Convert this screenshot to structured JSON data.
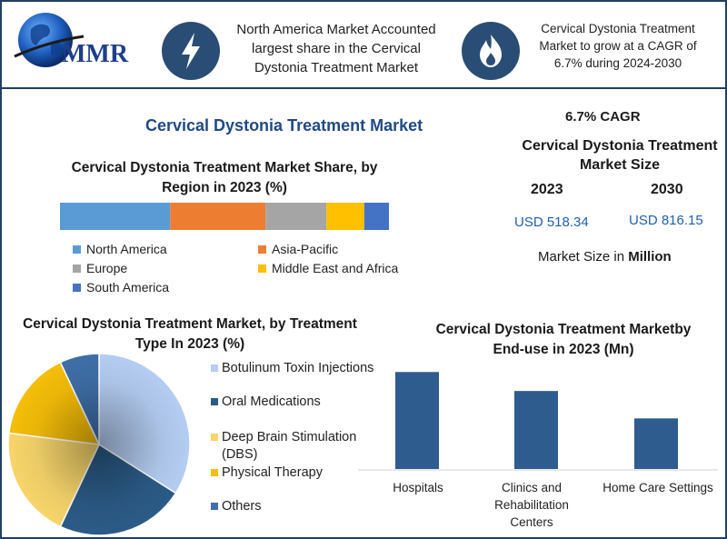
{
  "header": {
    "logo_text": "MMR",
    "blurb_left": "North America Market Accounted largest share in the Cervical Dystonia Treatment Market",
    "blurb_right": "Cervical Dystonia Treatment Market to grow at a CAGR of 6.7% during 2024-2030",
    "icon_left": "lightning-bolt-icon",
    "icon_right": "flame-icon"
  },
  "main_title": "Cervical Dystonia Treatment Market",
  "market_size": {
    "cagr": "6.7% CAGR",
    "title": "Cervical Dystonia Treatment Market Size",
    "year_a": "2023",
    "year_b": "2030",
    "value_a": "USD 518.34",
    "value_b": "USD 816.15",
    "note_prefix": "Market Size in ",
    "note_bold": "Million"
  },
  "colors": {
    "frame": "#1f3f66",
    "title_blue": "#1f4a85",
    "value_blue": "#1f5fb0"
  },
  "chart_data": [
    {
      "type": "bar",
      "orientation": "horizontal-stacked",
      "title": "Cervical Dystonia Treatment Market Share, by Region in 2023 (%)",
      "series": [
        {
          "name": "North America",
          "value": 33.5,
          "color": "#5b9bd5"
        },
        {
          "name": "Asia-Pacific",
          "value": 29.0,
          "color": "#ed7d31"
        },
        {
          "name": "Europe",
          "value": 18.5,
          "color": "#a5a5a5"
        },
        {
          "name": "Middle East and Africa",
          "value": 11.5,
          "color": "#ffc000"
        },
        {
          "name": "South America",
          "value": 7.5,
          "color": "#4472c4"
        }
      ]
    },
    {
      "type": "pie",
      "title": "Cervical Dystonia Treatment Market, by Treatment Type In 2023 (%)",
      "slices": [
        {
          "name": "Botulinum Toxin Injections",
          "value": 34,
          "color": "#b4cdf2"
        },
        {
          "name": "Oral Medications",
          "value": 23,
          "color": "#2b5b87"
        },
        {
          "name": "Deep Brain Stimulation (DBS)",
          "value": 20,
          "color": "#f7d56b"
        },
        {
          "name": "Physical Therapy",
          "value": 16,
          "color": "#f5be08"
        },
        {
          "name": "Others",
          "value": 7,
          "color": "#3f6fa8"
        }
      ]
    },
    {
      "type": "bar",
      "title": "Cervical Dystonia Treatment Marketby End-use in 2023 (Mn)",
      "categories": [
        "Hospitals",
        "Clinics and Rehabilitation Centers",
        "Home Care Settings"
      ],
      "values": [
        230,
        185,
        120
      ],
      "color": "#2f5c8e",
      "ylim": [
        0,
        250
      ]
    }
  ]
}
